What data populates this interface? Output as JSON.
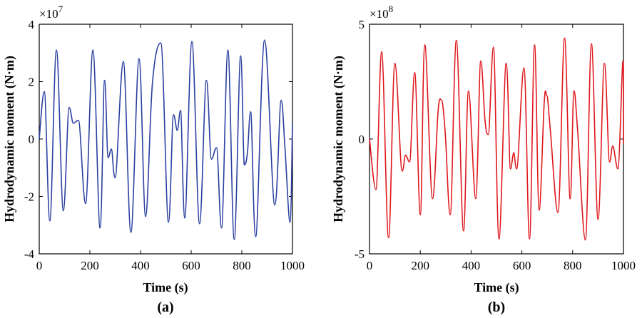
{
  "chart_data": [
    {
      "type": "line",
      "panel_label": "(a)",
      "title": "",
      "xlabel": "Time (s)",
      "ylabel": "Hydrodynamic moment (N·m)",
      "y_multiplier": "×10",
      "y_exponent": "7",
      "xlim": [
        0,
        1000
      ],
      "ylim": [
        -4,
        4
      ],
      "xticks": [
        0,
        200,
        400,
        600,
        800,
        1000
      ],
      "xtick_labels": [
        "0",
        "200",
        "400",
        "600",
        "800",
        "1000"
      ],
      "yticks": [
        -4,
        -2,
        0,
        2,
        4
      ],
      "ytick_labels": [
        "-4",
        "-2",
        "0",
        "2",
        "4"
      ],
      "color": "#2a3fa0",
      "series": [
        {
          "name": "Hydrodynamic moment",
          "x": [
            0,
            20,
            42,
            68,
            95,
            118,
            135,
            155,
            183,
            212,
            240,
            258,
            272,
            285,
            300,
            332,
            362,
            394,
            420,
            447,
            480,
            510,
            530,
            545,
            558,
            575,
            603,
            633,
            660,
            680,
            700,
            720,
            745,
            770,
            795,
            810,
            822,
            835,
            855,
            890,
            930,
            955,
            970,
            990,
            1000
          ],
          "y": [
            0,
            1.65,
            -2.85,
            3.1,
            -2.5,
            1.1,
            0.55,
            0.65,
            -2.25,
            3.1,
            -3.1,
            2.05,
            -0.65,
            -0.35,
            -1.35,
            2.7,
            -3.25,
            2.8,
            -2.7,
            1.95,
            3.35,
            -2.9,
            0.85,
            0.3,
            1.0,
            -2.75,
            3.4,
            -2.95,
            2.05,
            -0.7,
            -0.3,
            -3.1,
            3.1,
            -3.5,
            2.9,
            -0.9,
            -0.5,
            0.95,
            -3.4,
            3.45,
            -2.3,
            1.35,
            -0.25,
            -2.9,
            0.55
          ]
        }
      ]
    },
    {
      "type": "line",
      "panel_label": "(b)",
      "title": "",
      "xlabel": "Time (s)",
      "ylabel": "Hydrodynamic moment (N·m)",
      "y_multiplier": "×10",
      "y_exponent": "8",
      "xlim": [
        0,
        1000
      ],
      "ylim": [
        -5,
        5
      ],
      "xticks": [
        0,
        200,
        400,
        600,
        800,
        1000
      ],
      "xtick_labels": [
        "0",
        "200",
        "400",
        "600",
        "800",
        "1000"
      ],
      "yticks": [
        -5,
        0,
        5
      ],
      "ytick_labels": [
        "-5",
        "0",
        "5"
      ],
      "color": "#e0161b",
      "series": [
        {
          "name": "Hydrodynamic moment",
          "x": [
            0,
            25,
            48,
            75,
            100,
            128,
            142,
            158,
            178,
            200,
            218,
            248,
            270,
            283,
            298,
            318,
            342,
            370,
            390,
            418,
            438,
            455,
            468,
            488,
            510,
            538,
            555,
            568,
            580,
            608,
            630,
            650,
            668,
            688,
            698,
            712,
            742,
            768,
            790,
            805,
            820,
            850,
            874,
            900,
            925,
            945,
            958,
            978,
            998,
            1000
          ],
          "y": [
            0,
            -2.2,
            3.8,
            -4.3,
            3.3,
            -1.4,
            -0.7,
            -1.0,
            2.9,
            -3.3,
            4.1,
            -2.6,
            1.2,
            1.7,
            0.3,
            -3.3,
            4.3,
            -4.0,
            2.1,
            -2.6,
            3.4,
            0.8,
            0.2,
            4.0,
            -4.35,
            3.3,
            -1.3,
            -0.6,
            -1.3,
            3.1,
            -4.35,
            4.1,
            -3.1,
            1.6,
            1.9,
            0.4,
            -3.2,
            4.4,
            -2.6,
            2.1,
            0.3,
            -4.4,
            4.15,
            -3.5,
            3.3,
            -1.0,
            -0.3,
            -1.3,
            3.4,
            -0.2
          ]
        }
      ]
    }
  ]
}
